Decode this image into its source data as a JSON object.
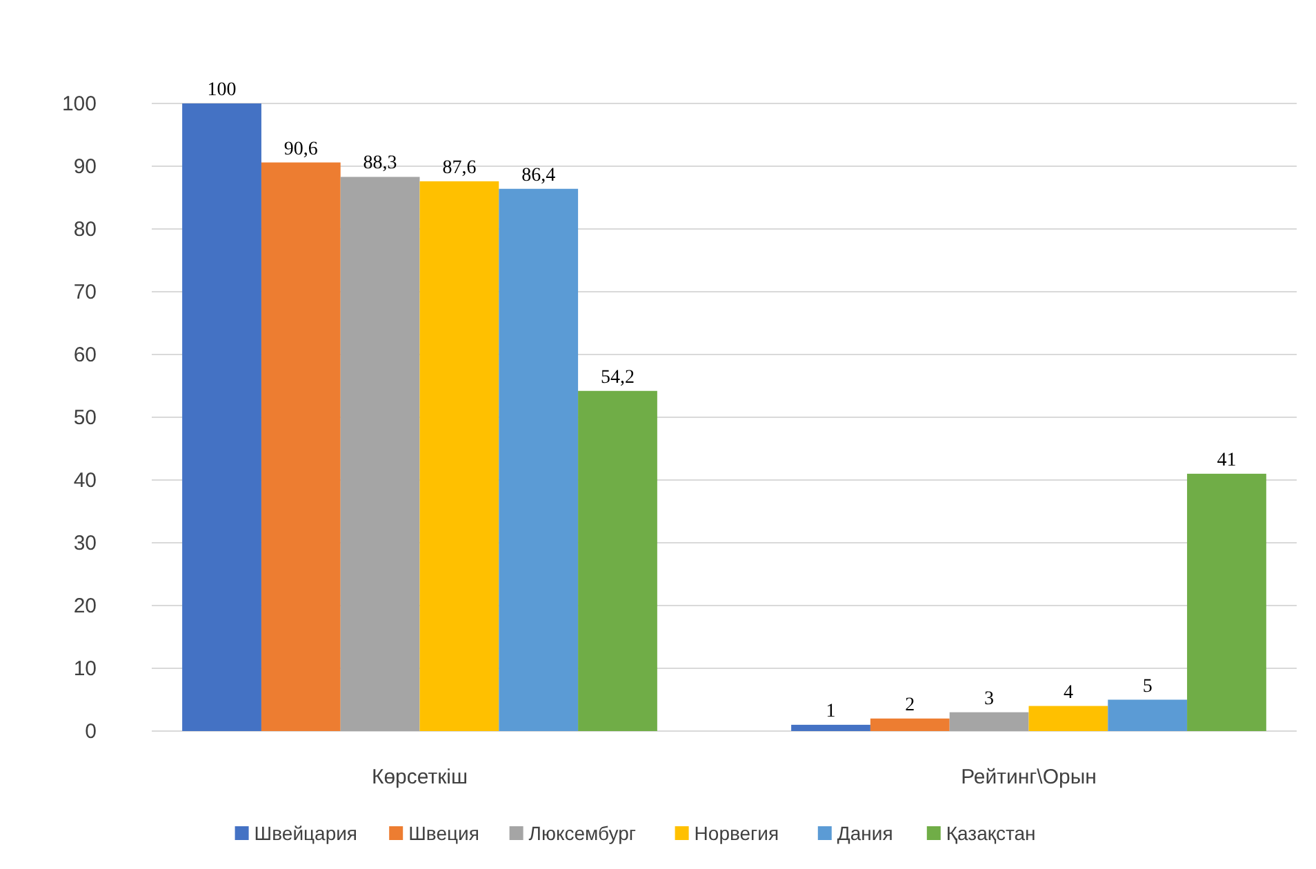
{
  "chart_data": {
    "type": "bar",
    "categories": [
      "Көрсеткіш",
      "Рейтинг\\Орын"
    ],
    "series": [
      {
        "name": "Швейцария",
        "color": "#4472c4",
        "values": [
          100,
          1
        ],
        "value_labels": [
          "100",
          "1"
        ]
      },
      {
        "name": "Швеция",
        "color": "#ed7d31",
        "values": [
          90.6,
          2
        ],
        "value_labels": [
          "90,6",
          "2"
        ]
      },
      {
        "name": "Люксембург",
        "color": "#a5a5a5",
        "values": [
          88.3,
          3
        ],
        "value_labels": [
          "88,3",
          "3"
        ]
      },
      {
        "name": "Норвегия",
        "color": "#ffc000",
        "values": [
          87.6,
          4
        ],
        "value_labels": [
          "87,6",
          "4"
        ]
      },
      {
        "name": "Дания",
        "color": "#5b9bd5",
        "values": [
          86.4,
          5
        ],
        "value_labels": [
          "86,4",
          "5"
        ]
      },
      {
        "name": "Қазақстан",
        "color": "#70ad47",
        "values": [
          54.2,
          41
        ],
        "value_labels": [
          "54,2",
          "41"
        ]
      }
    ],
    "ylim": [
      0,
      100
    ],
    "yticks": [
      0,
      10,
      20,
      30,
      40,
      50,
      60,
      70,
      80,
      90,
      100
    ],
    "grid": "y",
    "legend": "bottom"
  }
}
